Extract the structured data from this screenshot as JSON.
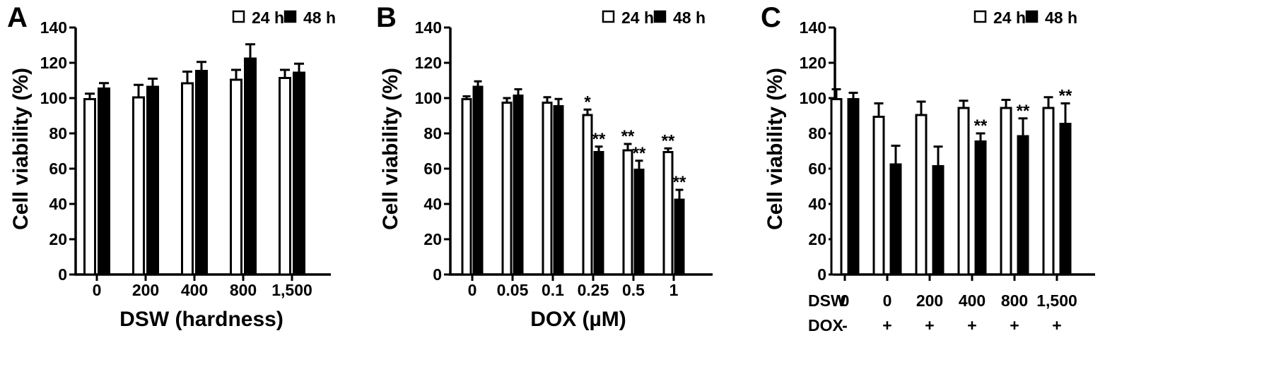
{
  "legend": {
    "series_24h": "24 h",
    "series_48h": "48 h"
  },
  "chart_data": [
    {
      "type": "bar",
      "panel": "A",
      "ylabel": "Cell viability (%)",
      "xlabel": "DSW (hardness)",
      "ylim": [
        0,
        140
      ],
      "yticks": [
        0,
        20,
        40,
        60,
        80,
        100,
        120,
        140
      ],
      "categories": [
        "0",
        "200",
        "400",
        "800",
        "1,500"
      ],
      "series": [
        {
          "name": "24 h",
          "fill": "#ffffff",
          "values": [
            100,
            101,
            109,
            111,
            112
          ],
          "errors": [
            2.5,
            6.5,
            6,
            5,
            4
          ],
          "annotations": [
            "",
            "",
            "",
            "",
            ""
          ]
        },
        {
          "name": "48 h",
          "fill": "#000000",
          "values": [
            106,
            107,
            116,
            123,
            115
          ],
          "errors": [
            2.5,
            4,
            4.5,
            7.5,
            4.5
          ],
          "annotations": [
            "",
            "",
            "",
            "",
            ""
          ]
        }
      ]
    },
    {
      "type": "bar",
      "panel": "B",
      "ylabel": "Cell viability (%)",
      "xlabel": "DOX (µM)",
      "ylim": [
        0,
        140
      ],
      "yticks": [
        0,
        20,
        40,
        60,
        80,
        100,
        120,
        140
      ],
      "categories": [
        "0",
        "0.05",
        "0.1",
        "0.25",
        "0.5",
        "1"
      ],
      "series": [
        {
          "name": "24 h",
          "fill": "#ffffff",
          "values": [
            100,
            98,
            98,
            91,
            71,
            70
          ],
          "errors": [
            1,
            2,
            2.5,
            2.5,
            3,
            1.5
          ],
          "annotations": [
            "",
            "",
            "",
            "*",
            "**",
            "**"
          ]
        },
        {
          "name": "48 h",
          "fill": "#000000",
          "values": [
            107,
            102,
            96,
            70,
            60,
            43
          ],
          "errors": [
            2.5,
            3,
            3.5,
            2.5,
            4.5,
            5
          ],
          "annotations": [
            "",
            "",
            "",
            "**",
            "**",
            "**"
          ]
        }
      ]
    },
    {
      "type": "bar",
      "panel": "C",
      "ylabel": "Cell viability (%)",
      "xlabel": "",
      "ylim": [
        0,
        140
      ],
      "yticks": [
        0,
        20,
        40,
        60,
        80,
        100,
        120,
        140
      ],
      "row_labels": {
        "dsw": "DSW",
        "dox": "DOX"
      },
      "categories_dsw": [
        "0",
        "0",
        "200",
        "400",
        "800",
        "1,500"
      ],
      "categories_dox": [
        "-",
        "+",
        "+",
        "+",
        "+",
        "+"
      ],
      "series": [
        {
          "name": "24 h",
          "fill": "#ffffff",
          "values": [
            100,
            90,
            91,
            95,
            95,
            95
          ],
          "errors": [
            5,
            7,
            7,
            3.5,
            4,
            5.5
          ],
          "annotations": [
            "",
            "",
            "",
            "",
            "",
            ""
          ]
        },
        {
          "name": "48 h",
          "fill": "#000000",
          "values": [
            100,
            63,
            62,
            76,
            79,
            86
          ],
          "errors": [
            3,
            10,
            10.5,
            4,
            9.5,
            11
          ],
          "annotations": [
            "",
            "",
            "",
            "**",
            "**",
            "**"
          ]
        }
      ]
    }
  ]
}
